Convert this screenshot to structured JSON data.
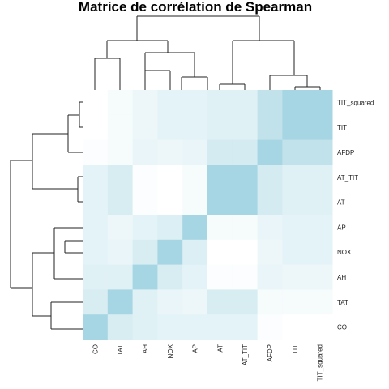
{
  "chart_data": {
    "type": "heatmap",
    "title": "Matrice de corrélation de Spearman",
    "rows": [
      "TIT_squared",
      "TIT",
      "AFDP",
      "AT_TIT",
      "AT",
      "AP",
      "NOX",
      "AH",
      "TAT",
      "CO"
    ],
    "cols": [
      "CO",
      "TAT",
      "AH",
      "NOX",
      "AP",
      "AT",
      "AT_TIT",
      "AFDP",
      "TIT",
      "TIT_squared"
    ],
    "values": [
      [
        -0.6,
        0.1,
        0.2,
        0.3,
        0.3,
        0.35,
        0.35,
        0.7,
        1.0,
        1.0
      ],
      [
        -0.6,
        0.1,
        0.2,
        0.3,
        0.3,
        0.35,
        0.35,
        0.7,
        1.0,
        1.0
      ],
      [
        0.05,
        0.1,
        0.25,
        0.2,
        0.25,
        0.5,
        0.5,
        1.0,
        0.7,
        0.7
      ],
      [
        0.3,
        0.45,
        0.05,
        0.0,
        0.1,
        1.0,
        1.0,
        0.5,
        0.35,
        0.35
      ],
      [
        0.3,
        0.45,
        0.05,
        0.0,
        0.1,
        1.0,
        1.0,
        0.5,
        0.35,
        0.35
      ],
      [
        0.3,
        0.2,
        0.3,
        0.4,
        1.0,
        0.1,
        0.1,
        0.25,
        0.3,
        0.3
      ],
      [
        0.3,
        0.25,
        0.45,
        1.0,
        0.4,
        0.0,
        0.0,
        0.2,
        0.3,
        0.3
      ],
      [
        0.35,
        0.35,
        1.0,
        0.45,
        0.3,
        0.05,
        0.05,
        0.25,
        0.2,
        0.2
      ],
      [
        0.45,
        1.0,
        0.35,
        0.25,
        0.2,
        0.45,
        0.45,
        0.1,
        0.1,
        0.1
      ],
      [
        1.0,
        0.45,
        0.35,
        0.3,
        0.3,
        0.3,
        0.3,
        0.05,
        -0.6,
        -0.6
      ]
    ],
    "colormap": {
      "low": "#ffffff",
      "high": "#a6d6e3"
    },
    "grid": false,
    "legend": "none",
    "dendrograms": [
      "top",
      "left"
    ]
  }
}
